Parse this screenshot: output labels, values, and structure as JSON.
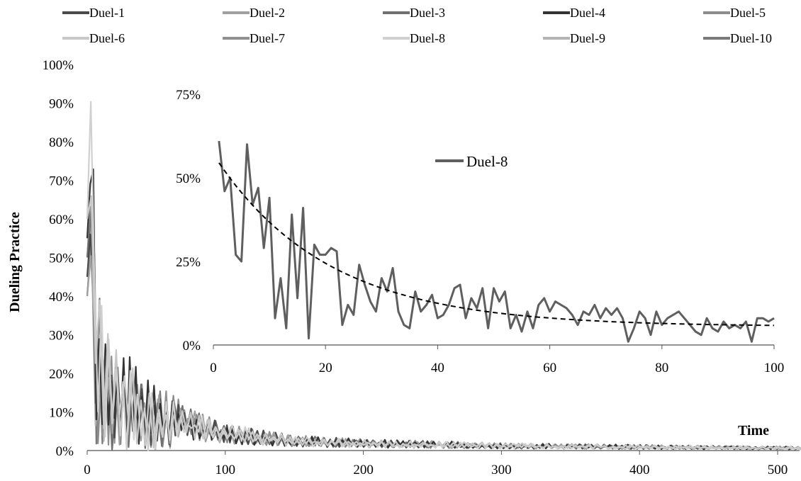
{
  "chart_data": [
    {
      "type": "line",
      "ylabel": "Dueling Practice",
      "xlabel": "Time",
      "xlim": [
        0,
        520
      ],
      "ylim": [
        0,
        100
      ],
      "x_ticks": [
        "0",
        "100",
        "200",
        "300",
        "400",
        "500"
      ],
      "y_ticks": [
        "0%",
        "10%",
        "20%",
        "30%",
        "40%",
        "50%",
        "60%",
        "70%",
        "80%",
        "90%",
        "100%"
      ],
      "legend_position": "top",
      "series": [
        {
          "name": "Duel-1",
          "color": "#4a4a4a",
          "peak": 70,
          "points": [
            [
              0,
              45
            ],
            [
              5,
              70
            ],
            [
              10,
              30
            ],
            [
              20,
              25
            ],
            [
              40,
              18
            ],
            [
              60,
              15
            ],
            [
              80,
              10
            ],
            [
              100,
              7
            ],
            [
              150,
              4
            ],
            [
              200,
              3
            ],
            [
              300,
              2
            ],
            [
              400,
              1.5
            ],
            [
              520,
              1
            ]
          ]
        },
        {
          "name": "Duel-2",
          "color": "#a0a0a0",
          "peak": 60,
          "points": [
            [
              0,
              40
            ],
            [
              5,
              60
            ],
            [
              10,
              30
            ],
            [
              20,
              25
            ],
            [
              40,
              18
            ],
            [
              60,
              15
            ],
            [
              80,
              10
            ],
            [
              100,
              7
            ],
            [
              150,
              4
            ],
            [
              200,
              3
            ],
            [
              300,
              2
            ],
            [
              400,
              1.5
            ],
            [
              520,
              1
            ]
          ]
        },
        {
          "name": "Duel-3",
          "color": "#707070",
          "peak": 75,
          "points": [
            [
              0,
              50
            ],
            [
              5,
              75
            ],
            [
              10,
              35
            ],
            [
              20,
              25
            ],
            [
              40,
              18
            ],
            [
              60,
              15
            ],
            [
              80,
              10
            ],
            [
              100,
              7
            ],
            [
              150,
              4
            ],
            [
              200,
              3
            ],
            [
              300,
              2
            ],
            [
              400,
              1.5
            ],
            [
              520,
              1
            ]
          ]
        },
        {
          "name": "Duel-4",
          "color": "#333333",
          "peak": 87,
          "points": [
            [
              0,
              55
            ],
            [
              5,
              87
            ],
            [
              10,
              40
            ],
            [
              20,
              30
            ],
            [
              40,
              20
            ],
            [
              60,
              15
            ],
            [
              80,
              10
            ],
            [
              100,
              7
            ],
            [
              150,
              4
            ],
            [
              200,
              3
            ],
            [
              300,
              2
            ],
            [
              400,
              1.5
            ],
            [
              520,
              1
            ]
          ]
        },
        {
          "name": "Duel-5",
          "color": "#8c8c8c",
          "peak": 65,
          "points": [
            [
              0,
              40
            ],
            [
              5,
              65
            ],
            [
              10,
              30
            ],
            [
              20,
              25
            ],
            [
              40,
              18
            ],
            [
              60,
              15
            ],
            [
              80,
              10
            ],
            [
              100,
              7
            ],
            [
              150,
              4
            ],
            [
              200,
              3
            ],
            [
              300,
              2
            ],
            [
              400,
              1.5
            ],
            [
              520,
              1
            ]
          ]
        },
        {
          "name": "Duel-6",
          "color": "#c8c8c8",
          "peak": 97,
          "points": [
            [
              0,
              60
            ],
            [
              2,
              97
            ],
            [
              10,
              45
            ],
            [
              20,
              30
            ],
            [
              40,
              20
            ],
            [
              60,
              15
            ],
            [
              80,
              10
            ],
            [
              100,
              7
            ],
            [
              150,
              4
            ],
            [
              200,
              3
            ],
            [
              300,
              2
            ],
            [
              400,
              1.5
            ],
            [
              520,
              1
            ]
          ]
        },
        {
          "name": "Duel-7",
          "color": "#909090",
          "peak": 80,
          "points": [
            [
              0,
              50
            ],
            [
              5,
              80
            ],
            [
              10,
              35
            ],
            [
              20,
              28
            ],
            [
              40,
              18
            ],
            [
              60,
              15
            ],
            [
              80,
              10
            ],
            [
              100,
              7
            ],
            [
              150,
              4
            ],
            [
              200,
              3
            ],
            [
              300,
              2
            ],
            [
              400,
              1.5
            ],
            [
              520,
              1
            ]
          ]
        },
        {
          "name": "Duel-8",
          "color": "#d0d0d0",
          "peak": 95,
          "points": [
            [
              0,
              60
            ],
            [
              3,
              95
            ],
            [
              10,
              40
            ],
            [
              20,
              28
            ],
            [
              40,
              18
            ],
            [
              60,
              15
            ],
            [
              80,
              10
            ],
            [
              100,
              7
            ],
            [
              150,
              4
            ],
            [
              200,
              3
            ],
            [
              300,
              2
            ],
            [
              400,
              1.5
            ],
            [
              520,
              1
            ]
          ]
        },
        {
          "name": "Duel-9",
          "color": "#b4b4b4",
          "peak": 70,
          "points": [
            [
              0,
              45
            ],
            [
              5,
              70
            ],
            [
              10,
              32
            ],
            [
              20,
              25
            ],
            [
              40,
              18
            ],
            [
              60,
              15
            ],
            [
              80,
              10
            ],
            [
              100,
              7
            ],
            [
              150,
              4
            ],
            [
              200,
              3
            ],
            [
              300,
              2
            ],
            [
              400,
              1.5
            ],
            [
              520,
              1
            ]
          ]
        },
        {
          "name": "Duel-10",
          "color": "#7a7a7a",
          "peak": 65,
          "points": [
            [
              0,
              40
            ],
            [
              5,
              65
            ],
            [
              10,
              30
            ],
            [
              20,
              25
            ],
            [
              40,
              18
            ],
            [
              60,
              15
            ],
            [
              80,
              10
            ],
            [
              100,
              7
            ],
            [
              150,
              4
            ],
            [
              200,
              3
            ],
            [
              300,
              2
            ],
            [
              400,
              1.5
            ],
            [
              520,
              1
            ]
          ]
        }
      ]
    },
    {
      "type": "line",
      "xlim": [
        0,
        100
      ],
      "ylim": [
        0,
        75
      ],
      "x_ticks": [
        "0",
        "20",
        "40",
        "60",
        "80",
        "100"
      ],
      "y_ticks": [
        "0%",
        "25%",
        "50%",
        "75%"
      ],
      "series": [
        {
          "name": "Duel-8",
          "color": "#5f5f5f",
          "x": [
            1,
            2,
            3,
            4,
            5,
            6,
            7,
            8,
            9,
            10,
            11,
            12,
            13,
            14,
            15,
            16,
            17,
            18,
            19,
            20,
            21,
            22,
            23,
            24,
            25,
            26,
            27,
            28,
            29,
            30,
            31,
            32,
            33,
            34,
            35,
            36,
            37,
            38,
            39,
            40,
            41,
            42,
            43,
            44,
            45,
            46,
            47,
            48,
            49,
            50,
            51,
            52,
            53,
            54,
            55,
            56,
            57,
            58,
            59,
            60,
            61,
            62,
            63,
            64,
            65,
            66,
            67,
            68,
            69,
            70,
            71,
            72,
            73,
            74,
            75,
            76,
            77,
            78,
            79,
            80,
            81,
            82,
            83,
            84,
            85,
            86,
            87,
            88,
            89,
            90,
            91,
            92,
            93,
            94,
            95,
            96,
            97,
            98,
            99,
            100
          ],
          "y": [
            61,
            46,
            50,
            27,
            25,
            60,
            42,
            47,
            29,
            44,
            8,
            20,
            5,
            39,
            14,
            41,
            2,
            30,
            27,
            27,
            29,
            28,
            6,
            12,
            9,
            24,
            18,
            13,
            10,
            20,
            16,
            23,
            10,
            6,
            5,
            16,
            10,
            12,
            15,
            8,
            9,
            12,
            17,
            18,
            8,
            14,
            11,
            17,
            5,
            17,
            13,
            16,
            5,
            9,
            4,
            10,
            5,
            12,
            14,
            10,
            13,
            12,
            11,
            9,
            6,
            10,
            9,
            12,
            8,
            11,
            9,
            11,
            8,
            1,
            5,
            10,
            8,
            3,
            10,
            6,
            8,
            9,
            10,
            8,
            6,
            4,
            3,
            8,
            5,
            4,
            7,
            5,
            6,
            5,
            7,
            1,
            8,
            8,
            7,
            8
          ]
        },
        {
          "name": "",
          "type": "trend",
          "style": "dashed",
          "formula": "y = 5.5 + 49 * exp(-(x - 1) / 20)",
          "x": [
            1,
            100
          ]
        }
      ]
    }
  ]
}
